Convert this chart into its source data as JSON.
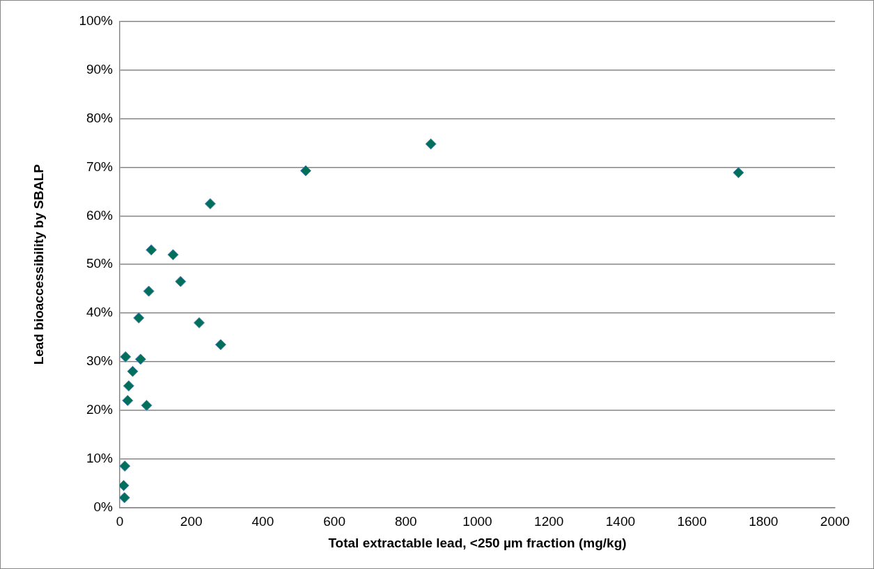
{
  "chart_data": {
    "type": "scatter",
    "xlabel": "Total extractable lead, <250 µm fraction (mg/kg)",
    "ylabel": "Lead bioaccessibility by SBALP",
    "x": [
      88,
      149,
      170,
      81,
      53,
      222,
      282,
      16,
      58,
      36,
      25,
      22,
      75,
      14,
      11,
      13,
      253,
      520,
      870,
      1730
    ],
    "values": [
      53,
      52,
      46.5,
      44.5,
      39,
      38,
      33.5,
      31,
      30.5,
      28,
      25,
      22,
      21,
      8.5,
      4.5,
      2,
      62.5,
      69.3,
      74.8,
      68.9
    ],
    "color": "#00705a",
    "marker": "diamond",
    "grid": "y",
    "xlim": [
      0,
      2000
    ],
    "xticks": [
      0,
      200,
      400,
      600,
      800,
      1000,
      1200,
      1400,
      1600,
      1800,
      2000
    ],
    "ylim": [
      0,
      100
    ],
    "yticks": [
      {
        "value": 0,
        "label": "0%"
      },
      {
        "value": 10,
        "label": "10%"
      },
      {
        "value": 20,
        "label": "20%"
      },
      {
        "value": 30,
        "label": "30%"
      },
      {
        "value": 40,
        "label": "40%"
      },
      {
        "value": 50,
        "label": "50%"
      },
      {
        "value": 60,
        "label": "60%"
      },
      {
        "value": 70,
        "label": "70%"
      },
      {
        "value": 80,
        "label": "80%"
      },
      {
        "value": 90,
        "label": "90%"
      },
      {
        "value": 100,
        "label": "100%"
      }
    ]
  }
}
